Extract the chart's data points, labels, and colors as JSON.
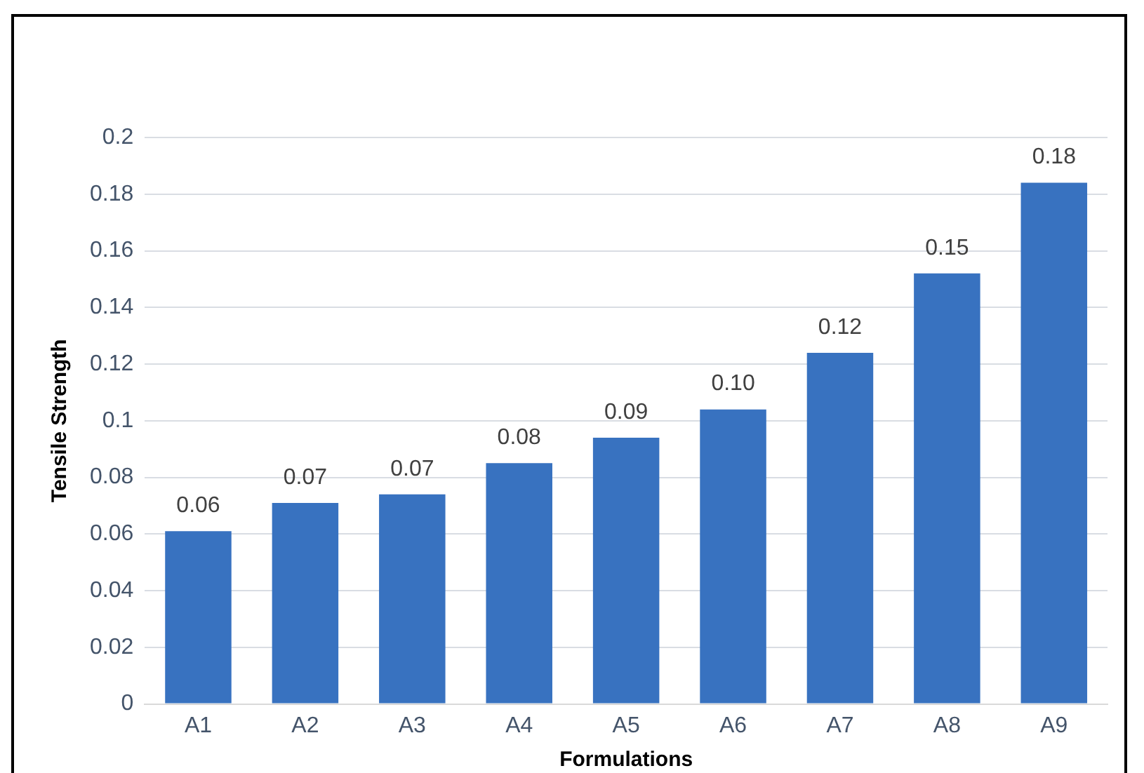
{
  "chart_data": {
    "type": "bar",
    "xlabel": "Formulations",
    "ylabel": "Tensile Strength",
    "categories": [
      "A1",
      "A2",
      "A3",
      "A4",
      "A5",
      "A6",
      "A7",
      "A8",
      "A9"
    ],
    "values": [
      0.061,
      0.071,
      0.074,
      0.085,
      0.094,
      0.104,
      0.124,
      0.152,
      0.184
    ],
    "value_labels": [
      "0.06",
      "0.07",
      "0.07",
      "0.08",
      "0.09",
      "0.10",
      "0.12",
      "0.15",
      "0.18"
    ],
    "color": "#3872c0",
    "ylim": [
      0,
      0.2
    ],
    "yticks": [
      0,
      0.02,
      0.04,
      0.06,
      0.08,
      0.1,
      0.12,
      0.14,
      0.16,
      0.18,
      0.2
    ],
    "grid": "y",
    "legend": false
  }
}
